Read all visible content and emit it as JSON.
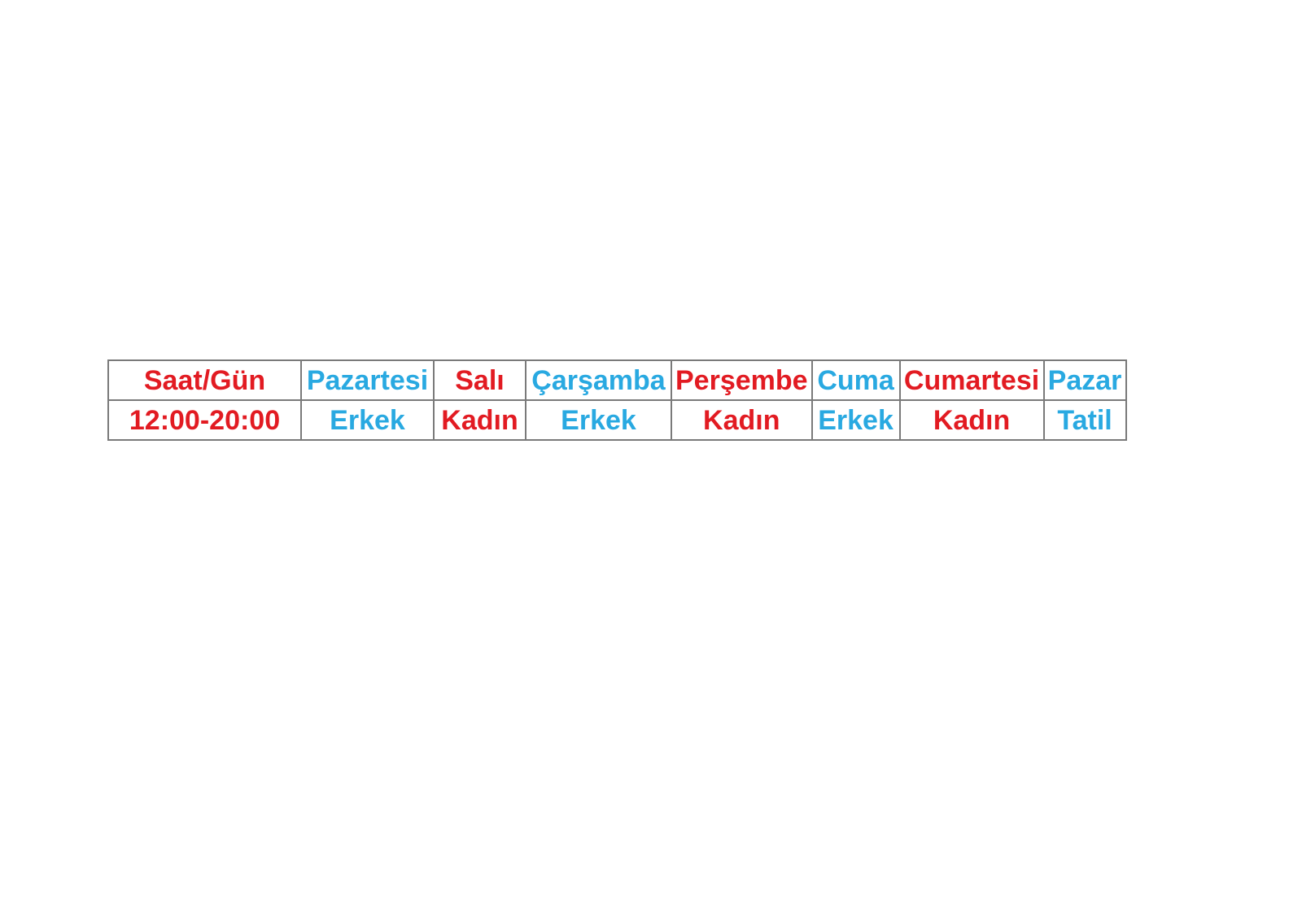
{
  "page": {
    "background": "#ffffff"
  },
  "colors": {
    "red": "#e21b22",
    "blue": "#29a9e1",
    "table_border": "#7a7a7a"
  },
  "table": {
    "header": [
      {
        "text": "Saat/Gün",
        "color": "#e21b22"
      },
      {
        "text": "Pazartesi",
        "color": "#29a9e1"
      },
      {
        "text": "Salı",
        "color": "#e21b22"
      },
      {
        "text": "Çarşamba",
        "color": "#29a9e1"
      },
      {
        "text": "Perşembe",
        "color": "#e21b22"
      },
      {
        "text": "Cuma",
        "color": "#29a9e1"
      },
      {
        "text": "Cumartesi",
        "color": "#e21b22"
      },
      {
        "text": "Pazar",
        "color": "#29a9e1"
      }
    ],
    "rows": [
      {
        "cells": [
          {
            "text": "12:00-20:00",
            "color": "#e21b22"
          },
          {
            "text": "Erkek",
            "color": "#29a9e1"
          },
          {
            "text": "Kadın",
            "color": "#e21b22"
          },
          {
            "text": "Erkek",
            "color": "#29a9e1"
          },
          {
            "text": "Kadın",
            "color": "#e21b22"
          },
          {
            "text": "Erkek",
            "color": "#29a9e1"
          },
          {
            "text": "Kadın",
            "color": "#e21b22"
          },
          {
            "text": "Tatil",
            "color": "#29a9e1"
          }
        ]
      }
    ]
  }
}
